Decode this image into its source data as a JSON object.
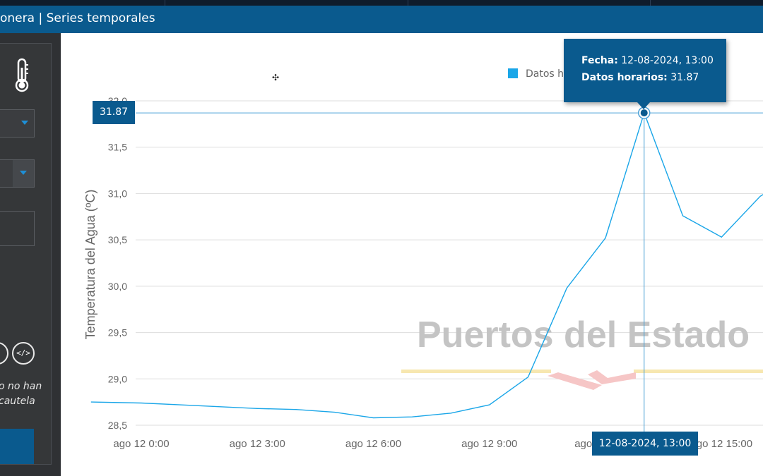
{
  "header": {
    "title": "onera | Series temporales"
  },
  "sidebar": {
    "thermometer_icon": "thermometer-icon",
    "action_icons": [
      "settings-icon",
      "code-icon"
    ],
    "note_lines": [
      "o no han",
      "cautela"
    ]
  },
  "chart_data": {
    "type": "line",
    "ylabel": "Temperatura del Agua (ºC)",
    "watermark": "Puertos del Estado",
    "legend": {
      "series_label": "Datos h"
    },
    "ylim": [
      28.5,
      32.0
    ],
    "y_ticks": [
      "28,5",
      "29,0",
      "29,5",
      "30,0",
      "30,5",
      "31,0",
      "31,5",
      "32,0"
    ],
    "x_ticks": [
      "ago 12 0:00",
      "ago 12 3:00",
      "ago 12 6:00",
      "ago 12 9:00",
      "ago 12 12:00",
      "ago 12 15:00"
    ],
    "x_tick_hours": [
      0,
      3,
      6,
      9,
      12,
      15
    ],
    "xlim_hours": [
      0,
      16.2
    ],
    "series": [
      {
        "color": "#1aa6e8",
        "x_hours": [
          -1.3,
          0,
          1,
          2,
          3,
          4,
          5,
          6,
          7,
          8,
          9,
          10,
          11,
          12,
          13,
          14,
          15,
          16,
          16.2
        ],
        "y": [
          28.75,
          28.74,
          28.72,
          28.7,
          28.68,
          28.67,
          28.64,
          28.58,
          28.59,
          28.63,
          28.72,
          29.02,
          29.98,
          30.52,
          31.87,
          30.76,
          30.53,
          30.97,
          31.02
        ]
      }
    ],
    "grid": true,
    "hover": {
      "label_fecha": "Fecha:",
      "value_fecha": "12-08-2024, 13:00",
      "label_series": "Datos horarios:",
      "value_series": "31.87",
      "y_badge": "31.87",
      "x_badge": "12-08-2024, 13:00"
    }
  }
}
